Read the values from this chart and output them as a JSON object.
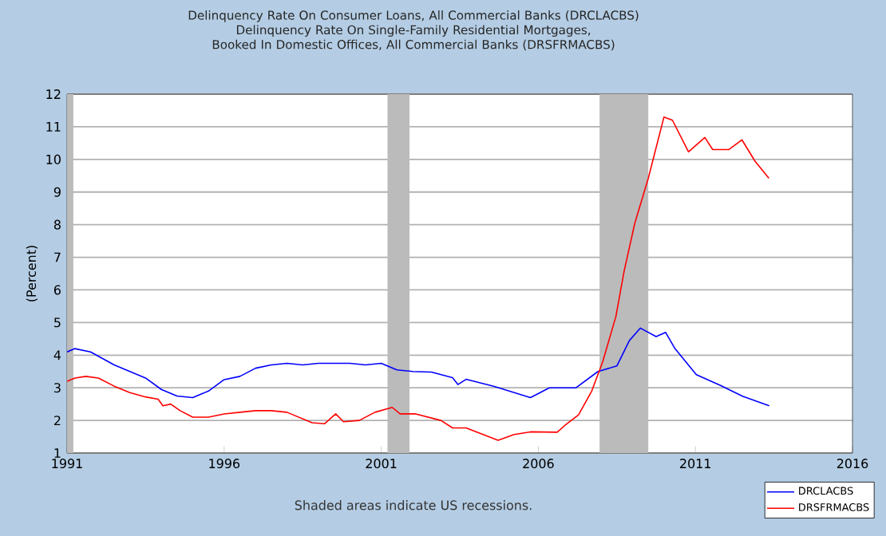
{
  "chart_data": {
    "type": "line",
    "title": "Delinquency Rate On Consumer Loans, All Commercial Banks (DRCLACBS)",
    "subtitle": "Delinquency Rate On Single-Family Residential Mortgages, Booked In Domestic Offices, All Commercial Banks (DRSFRMACBS)",
    "ylabel": "(Percent)",
    "annotations": [
      "Shaded areas indicate US recessions."
    ],
    "xlim": [
      1991,
      2016
    ],
    "xticks": [
      1991,
      1996,
      2001,
      2006,
      2011,
      2016
    ],
    "ylim": [
      1,
      12
    ],
    "yticks": [
      1,
      2,
      3,
      4,
      5,
      6,
      7,
      8,
      9,
      10,
      11,
      12
    ],
    "grid": "y",
    "legend": "bottom right",
    "marker": "none",
    "line_style": "solid",
    "bands": [
      {
        "axis": "x",
        "from": 1991.0,
        "to": 1991.2,
        "color": "#bbbbbb"
      },
      {
        "axis": "x",
        "from": 2001.2,
        "to": 2001.9,
        "color": "#bbbbbb"
      },
      {
        "axis": "x",
        "from": 2007.95,
        "to": 2009.5,
        "color": "#bbbbbb"
      }
    ],
    "series": [
      {
        "name": "DRCLACBS",
        "color": "#0000ff",
        "x": [
          1991.0,
          1991.25,
          1991.75,
          1992.5,
          1993.0,
          1993.5,
          1994.0,
          1994.5,
          1995.0,
          1995.5,
          1996.0,
          1996.5,
          1997.0,
          1997.5,
          1998.0,
          1998.5,
          1999.0,
          1999.5,
          2000.0,
          2000.5,
          2001.0,
          2001.5,
          2002.0,
          2002.6,
          2003.27,
          2003.44,
          2003.7,
          2004.6,
          2005.75,
          2006.35,
          2007.2,
          2007.9,
          2008.5,
          2008.9,
          2009.25,
          2009.75,
          2010.05,
          2010.35,
          2011.03,
          2011.8,
          2012.5,
          2013.35
        ],
        "values": [
          4.1,
          4.2,
          4.1,
          3.7,
          3.5,
          3.3,
          2.95,
          2.75,
          2.7,
          2.9,
          3.25,
          3.35,
          3.6,
          3.7,
          3.75,
          3.7,
          3.75,
          3.75,
          3.75,
          3.7,
          3.75,
          3.55,
          3.5,
          3.48,
          3.31,
          3.1,
          3.26,
          3.04,
          2.7,
          3.0,
          3.0,
          3.5,
          3.67,
          4.45,
          4.83,
          4.57,
          4.7,
          4.2,
          3.4,
          3.07,
          2.74,
          2.45
        ]
      },
      {
        "name": "DRSFRMACBS",
        "color": "#ff0000",
        "x": [
          1991.0,
          1991.25,
          1991.6,
          1992.0,
          1992.5,
          1993.0,
          1993.5,
          1993.9,
          1994.05,
          1994.3,
          1994.6,
          1995.0,
          1995.5,
          1996.0,
          1996.5,
          1997.0,
          1997.5,
          1998.0,
          1998.8,
          1999.2,
          1999.55,
          1999.8,
          2000.3,
          2000.8,
          2001.35,
          2001.6,
          2002.1,
          2002.9,
          2003.27,
          2003.7,
          2004.72,
          2005.23,
          2005.75,
          2006.6,
          2006.85,
          2007.28,
          2007.7,
          2008.05,
          2008.47,
          2008.73,
          2009.07,
          2009.5,
          2010.0,
          2010.27,
          2010.78,
          2011.3,
          2011.55,
          2012.06,
          2012.48,
          2012.9,
          2013.34
        ],
        "values": [
          3.2,
          3.3,
          3.35,
          3.3,
          3.05,
          2.85,
          2.72,
          2.65,
          2.45,
          2.5,
          2.3,
          2.1,
          2.1,
          2.2,
          2.25,
          2.3,
          2.3,
          2.25,
          1.93,
          1.9,
          2.2,
          1.96,
          2.0,
          2.25,
          2.4,
          2.2,
          2.2,
          2.0,
          1.77,
          1.77,
          1.39,
          1.57,
          1.65,
          1.64,
          1.85,
          2.17,
          2.9,
          3.8,
          5.19,
          6.57,
          8.04,
          9.42,
          11.3,
          11.2,
          10.23,
          10.67,
          10.3,
          10.3,
          10.6,
          9.94,
          9.42
        ]
      }
    ]
  }
}
